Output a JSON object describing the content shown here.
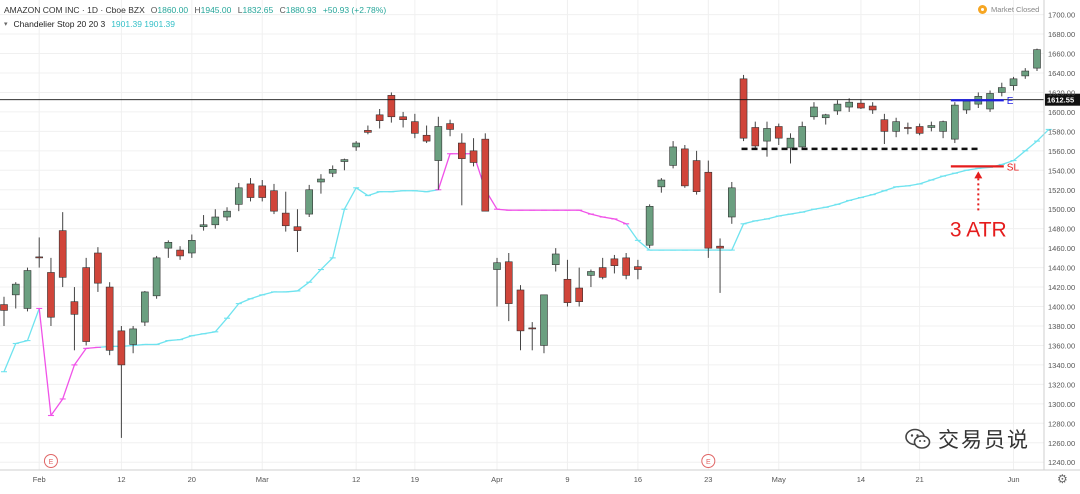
{
  "legend": {
    "symbol": "AMAZON COM INC · 1D · Cboe BZX",
    "ohlc": {
      "o_label": "O",
      "o": "1860.00",
      "h_label": "H",
      "h": "1945.00",
      "l_label": "L",
      "l": "1832.65",
      "c_label": "C",
      "c": "1880.93",
      "change": "+50.93 (+2.78%)"
    },
    "indicator": {
      "name": "Chandelier Stop 20 20 3",
      "values": "1901.39  1901.39"
    }
  },
  "status": {
    "label": "Market Closed"
  },
  "watermark": {
    "text": "交易员说",
    "icon": "wechat-icon"
  },
  "colors": {
    "up": "#6b9f80",
    "down": "#d0453a",
    "stop_long": "#6fe3ef",
    "stop_short": "#f052e8",
    "entry_line": "#1f1fe0",
    "sl_line": "#e51c1c",
    "annot": "#e51c1c",
    "grid": "#f0f0f0"
  },
  "chart_data": {
    "type": "candlestick",
    "title": "AMAZON COM INC · 1D · Cboe BZX",
    "y_axis": {
      "range": [
        1232,
        1715
      ],
      "ticks": [
        1700,
        1680,
        1660,
        1640,
        1620,
        1600,
        1580,
        1560,
        1540,
        1520,
        1500,
        1480,
        1460,
        1440,
        1420,
        1400,
        1380,
        1360,
        1340,
        1320,
        1300,
        1280,
        1260,
        1240
      ],
      "current_price": "1612.55"
    },
    "x_axis": {
      "labels": [
        "Feb",
        "12",
        "20",
        "Mar",
        "12",
        "19",
        "Apr",
        "9",
        "16",
        "23",
        "May",
        "14",
        "21",
        "Jun"
      ]
    },
    "event_markers": [
      "E",
      "E"
    ],
    "candles": [
      {
        "o": 1402,
        "h": 1410,
        "l": 1380,
        "c": 1396
      },
      {
        "o": 1412,
        "h": 1425,
        "l": 1398,
        "c": 1423
      },
      {
        "o": 1398,
        "h": 1440,
        "l": 1395,
        "c": 1437
      },
      {
        "o": 1451,
        "h": 1471,
        "l": 1440,
        "c": 1450
      },
      {
        "o": 1435,
        "h": 1450,
        "l": 1380,
        "c": 1389
      },
      {
        "o": 1478,
        "h": 1497,
        "l": 1420,
        "c": 1430
      },
      {
        "o": 1405,
        "h": 1420,
        "l": 1355,
        "c": 1392
      },
      {
        "o": 1440,
        "h": 1450,
        "l": 1360,
        "c": 1364
      },
      {
        "o": 1455,
        "h": 1461,
        "l": 1415,
        "c": 1424
      },
      {
        "o": 1420,
        "h": 1425,
        "l": 1350,
        "c": 1355
      },
      {
        "o": 1375,
        "h": 1380,
        "l": 1265,
        "c": 1340
      },
      {
        "o": 1361,
        "h": 1380,
        "l": 1352,
        "c": 1377
      },
      {
        "o": 1384,
        "h": 1416,
        "l": 1380,
        "c": 1415
      },
      {
        "o": 1411,
        "h": 1452,
        "l": 1408,
        "c": 1450
      },
      {
        "o": 1460,
        "h": 1468,
        "l": 1450,
        "c": 1466
      },
      {
        "o": 1458,
        "h": 1462,
        "l": 1448,
        "c": 1452
      },
      {
        "o": 1455,
        "h": 1474,
        "l": 1450,
        "c": 1468
      },
      {
        "o": 1482,
        "h": 1494,
        "l": 1478,
        "c": 1484
      },
      {
        "o": 1484,
        "h": 1500,
        "l": 1480,
        "c": 1492
      },
      {
        "o": 1492,
        "h": 1502,
        "l": 1488,
        "c": 1498
      },
      {
        "o": 1505,
        "h": 1527,
        "l": 1498,
        "c": 1522
      },
      {
        "o": 1526,
        "h": 1532,
        "l": 1508,
        "c": 1512
      },
      {
        "o": 1524,
        "h": 1530,
        "l": 1508,
        "c": 1512
      },
      {
        "o": 1519,
        "h": 1526,
        "l": 1495,
        "c": 1498
      },
      {
        "o": 1496,
        "h": 1518,
        "l": 1477,
        "c": 1483
      },
      {
        "o": 1482,
        "h": 1500,
        "l": 1456,
        "c": 1478
      },
      {
        "o": 1495,
        "h": 1525,
        "l": 1492,
        "c": 1520
      },
      {
        "o": 1528,
        "h": 1536,
        "l": 1516,
        "c": 1531
      },
      {
        "o": 1537,
        "h": 1545,
        "l": 1533,
        "c": 1541
      },
      {
        "o": 1549,
        "h": 1552,
        "l": 1540,
        "c": 1551
      },
      {
        "o": 1564,
        "h": 1570,
        "l": 1560,
        "c": 1568
      },
      {
        "o": 1581,
        "h": 1586,
        "l": 1577,
        "c": 1579
      },
      {
        "o": 1597,
        "h": 1603,
        "l": 1583,
        "c": 1591
      },
      {
        "o": 1617,
        "h": 1620,
        "l": 1589,
        "c": 1595
      },
      {
        "o": 1595,
        "h": 1600,
        "l": 1584,
        "c": 1592
      },
      {
        "o": 1590,
        "h": 1598,
        "l": 1573,
        "c": 1578
      },
      {
        "o": 1576,
        "h": 1586,
        "l": 1568,
        "c": 1570
      },
      {
        "o": 1550,
        "h": 1595,
        "l": 1520,
        "c": 1585
      },
      {
        "o": 1588,
        "h": 1592,
        "l": 1575,
        "c": 1582
      },
      {
        "o": 1568,
        "h": 1578,
        "l": 1504,
        "c": 1552
      },
      {
        "o": 1560,
        "h": 1573,
        "l": 1544,
        "c": 1548
      },
      {
        "o": 1572,
        "h": 1578,
        "l": 1500,
        "c": 1498
      },
      {
        "o": 1438,
        "h": 1450,
        "l": 1400,
        "c": 1445
      },
      {
        "o": 1446,
        "h": 1455,
        "l": 1385,
        "c": 1403
      },
      {
        "o": 1417,
        "h": 1422,
        "l": 1355,
        "c": 1375
      },
      {
        "o": 1378,
        "h": 1384,
        "l": 1355,
        "c": 1377
      },
      {
        "o": 1360,
        "h": 1412,
        "l": 1352,
        "c": 1412
      },
      {
        "o": 1443,
        "h": 1460,
        "l": 1436,
        "c": 1454
      },
      {
        "o": 1428,
        "h": 1448,
        "l": 1400,
        "c": 1404
      },
      {
        "o": 1419,
        "h": 1440,
        "l": 1400,
        "c": 1405
      },
      {
        "o": 1432,
        "h": 1438,
        "l": 1420,
        "c": 1436
      },
      {
        "o": 1440,
        "h": 1450,
        "l": 1428,
        "c": 1430
      },
      {
        "o": 1449,
        "h": 1453,
        "l": 1434,
        "c": 1442
      },
      {
        "o": 1450,
        "h": 1455,
        "l": 1428,
        "c": 1432
      },
      {
        "o": 1441,
        "h": 1448,
        "l": 1428,
        "c": 1438
      },
      {
        "o": 1463,
        "h": 1505,
        "l": 1460,
        "c": 1503
      },
      {
        "o": 1523,
        "h": 1532,
        "l": 1517,
        "c": 1530
      },
      {
        "o": 1545,
        "h": 1570,
        "l": 1542,
        "c": 1564
      },
      {
        "o": 1562,
        "h": 1566,
        "l": 1522,
        "c": 1524
      },
      {
        "o": 1550,
        "h": 1560,
        "l": 1515,
        "c": 1518
      },
      {
        "o": 1538,
        "h": 1550,
        "l": 1450,
        "c": 1460
      },
      {
        "o": 1462,
        "h": 1470,
        "l": 1414,
        "c": 1460
      },
      {
        "o": 1492,
        "h": 1528,
        "l": 1485,
        "c": 1522
      },
      {
        "o": 1634,
        "h": 1638,
        "l": 1570,
        "c": 1573
      },
      {
        "o": 1584,
        "h": 1590,
        "l": 1563,
        "c": 1565
      },
      {
        "o": 1570,
        "h": 1590,
        "l": 1554,
        "c": 1583
      },
      {
        "o": 1585,
        "h": 1588,
        "l": 1566,
        "c": 1573
      },
      {
        "o": 1563,
        "h": 1578,
        "l": 1547,
        "c": 1573
      },
      {
        "o": 1564,
        "h": 1590,
        "l": 1562,
        "c": 1585
      },
      {
        "o": 1595,
        "h": 1610,
        "l": 1592,
        "c": 1605
      },
      {
        "o": 1594,
        "h": 1598,
        "l": 1587,
        "c": 1597
      },
      {
        "o": 1601,
        "h": 1612,
        "l": 1597,
        "c": 1608
      },
      {
        "o": 1605,
        "h": 1614,
        "l": 1600,
        "c": 1610
      },
      {
        "o": 1609,
        "h": 1613,
        "l": 1603,
        "c": 1604
      },
      {
        "o": 1606,
        "h": 1610,
        "l": 1598,
        "c": 1602
      },
      {
        "o": 1592,
        "h": 1598,
        "l": 1567,
        "c": 1580
      },
      {
        "o": 1580,
        "h": 1594,
        "l": 1574,
        "c": 1590
      },
      {
        "o": 1584,
        "h": 1589,
        "l": 1577,
        "c": 1583
      },
      {
        "o": 1585,
        "h": 1588,
        "l": 1576,
        "c": 1578
      },
      {
        "o": 1584,
        "h": 1590,
        "l": 1580,
        "c": 1586
      },
      {
        "o": 1580,
        "h": 1591,
        "l": 1573,
        "c": 1590
      },
      {
        "o": 1572,
        "h": 1610,
        "l": 1568,
        "c": 1607
      },
      {
        "o": 1602,
        "h": 1612,
        "l": 1598,
        "c": 1611
      },
      {
        "o": 1608,
        "h": 1620,
        "l": 1604,
        "c": 1616
      },
      {
        "o": 1603,
        "h": 1622,
        "l": 1600,
        "c": 1619
      },
      {
        "o": 1620,
        "h": 1630,
        "l": 1616,
        "c": 1625
      },
      {
        "o": 1627,
        "h": 1636,
        "l": 1622,
        "c": 1634
      },
      {
        "o": 1637,
        "h": 1645,
        "l": 1634,
        "c": 1642
      },
      {
        "o": 1645,
        "h": 1665,
        "l": 1642,
        "c": 1664
      }
    ],
    "chandelier_stop": [
      1333,
      1362,
      1365,
      1398,
      1288,
      1305,
      1340,
      1357,
      1358,
      1359,
      1359,
      1360,
      1361,
      1361,
      1365,
      1366,
      1370,
      1372,
      1374,
      1388,
      1403,
      1408,
      1412,
      1415,
      1415,
      1416,
      1425,
      1438,
      1450,
      1500,
      1522,
      1514,
      1518,
      1518,
      1519,
      1519,
      1518,
      1520,
      1557,
      1557,
      1557,
      1520,
      1500,
      1499,
      1499,
      1499,
      1499,
      1499,
      1499,
      1499,
      1495,
      1492,
      1490,
      1485,
      1468,
      1458,
      1458,
      1458,
      1458,
      1458,
      1458,
      1458,
      1458,
      1485,
      1488,
      1490,
      1493,
      1495,
      1497,
      1500,
      1502,
      1505,
      1509,
      1512,
      1515,
      1519,
      1523,
      1524,
      1526,
      1530,
      1534,
      1537,
      1540,
      1542,
      1543,
      1546,
      1550,
      1560,
      1570,
      1582
    ],
    "annotations": {
      "resistance_level": 1562,
      "entry_level": 1612,
      "entry_label": "E",
      "stop_level": 1544,
      "stop_label": "SL",
      "atr_label": "3 ATR"
    }
  }
}
